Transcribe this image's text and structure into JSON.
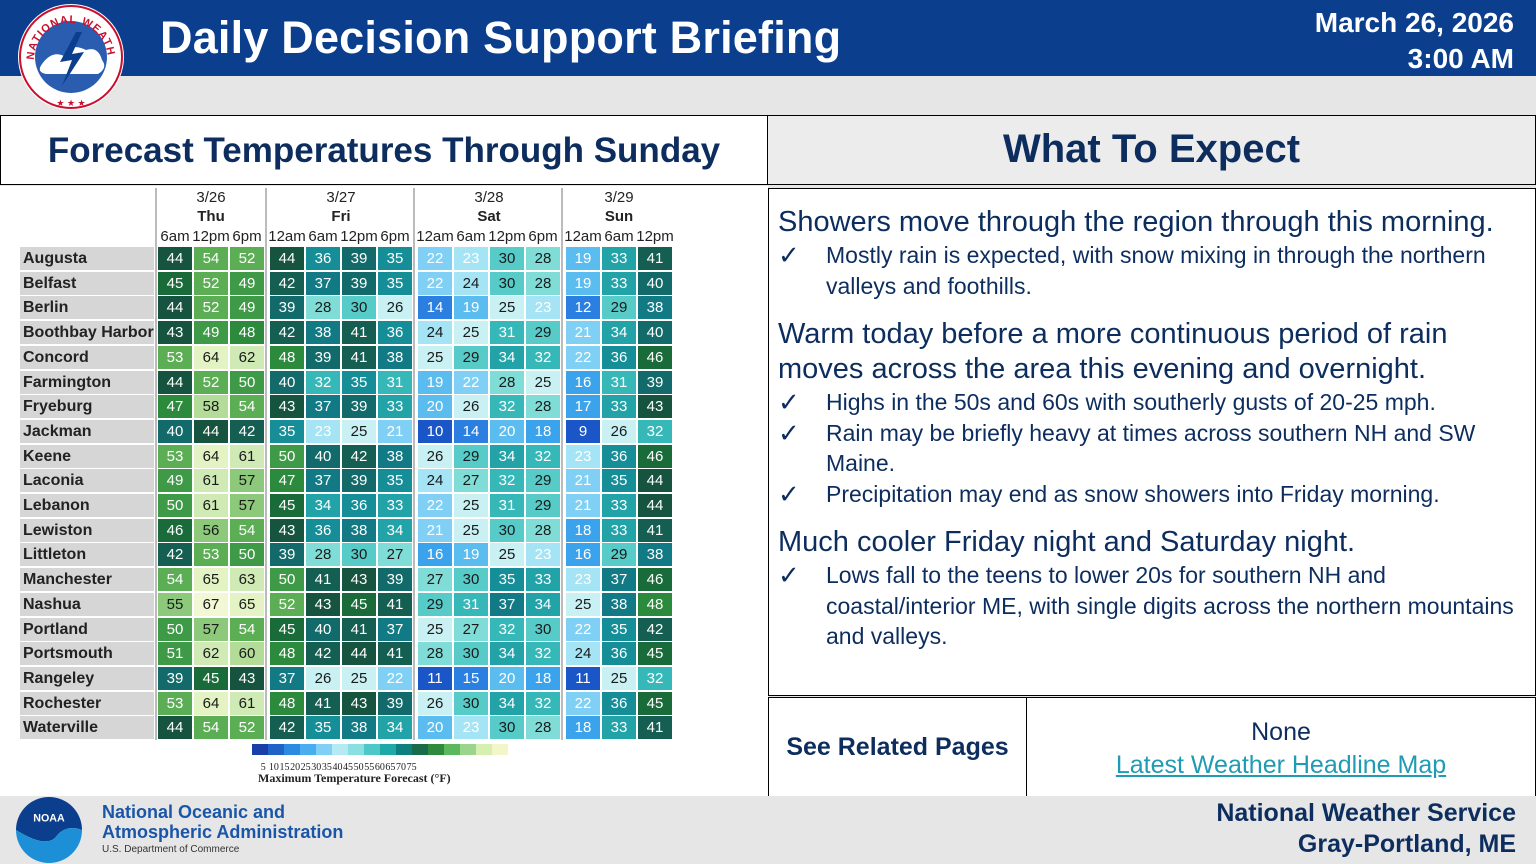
{
  "header": {
    "title": "Daily Decision Support Briefing",
    "date": "March 26, 2026",
    "time": "3:00 AM",
    "logo_text": "NATIONAL WEATHER SERVICE"
  },
  "left": {
    "title": "Forecast Temperatures Through Sunday",
    "days": [
      {
        "date": "3/26",
        "dow": "Thu",
        "times": [
          "6am",
          "12pm",
          "6pm"
        ]
      },
      {
        "date": "3/27",
        "dow": "Fri",
        "times": [
          "12am",
          "6am",
          "12pm",
          "6pm"
        ]
      },
      {
        "date": "3/28",
        "dow": "Sat",
        "times": [
          "12am",
          "6am",
          "12pm",
          "6pm"
        ]
      },
      {
        "date": "3/29",
        "dow": "Sun",
        "times": [
          "12am",
          "6am",
          "12pm"
        ]
      }
    ],
    "rows": [
      {
        "city": "Augusta",
        "temps": [
          44,
          54,
          52,
          44,
          36,
          39,
          35,
          22,
          23,
          30,
          28,
          19,
          33,
          41
        ]
      },
      {
        "city": "Belfast",
        "temps": [
          45,
          52,
          49,
          42,
          37,
          39,
          35,
          22,
          24,
          30,
          28,
          19,
          33,
          40
        ]
      },
      {
        "city": "Berlin",
        "temps": [
          44,
          52,
          49,
          39,
          28,
          30,
          26,
          14,
          19,
          25,
          23,
          12,
          29,
          38
        ]
      },
      {
        "city": "Boothbay Harbor",
        "temps": [
          43,
          49,
          48,
          42,
          38,
          41,
          36,
          24,
          25,
          31,
          29,
          21,
          34,
          40
        ]
      },
      {
        "city": "Concord",
        "temps": [
          53,
          64,
          62,
          48,
          39,
          41,
          38,
          25,
          29,
          34,
          32,
          22,
          36,
          46
        ]
      },
      {
        "city": "Farmington",
        "temps": [
          44,
          52,
          50,
          40,
          32,
          35,
          31,
          19,
          22,
          28,
          25,
          16,
          31,
          39
        ]
      },
      {
        "city": "Fryeburg",
        "temps": [
          47,
          58,
          54,
          43,
          37,
          39,
          33,
          20,
          26,
          32,
          28,
          17,
          33,
          43
        ]
      },
      {
        "city": "Jackman",
        "temps": [
          40,
          44,
          42,
          35,
          23,
          25,
          21,
          10,
          14,
          20,
          18,
          9,
          26,
          32
        ]
      },
      {
        "city": "Keene",
        "temps": [
          53,
          64,
          61,
          50,
          40,
          42,
          38,
          26,
          29,
          34,
          32,
          23,
          36,
          46
        ]
      },
      {
        "city": "Laconia",
        "temps": [
          49,
          61,
          57,
          47,
          37,
          39,
          35,
          24,
          27,
          32,
          29,
          21,
          35,
          44
        ]
      },
      {
        "city": "Lebanon",
        "temps": [
          50,
          61,
          57,
          45,
          34,
          36,
          33,
          22,
          25,
          31,
          29,
          21,
          33,
          44
        ]
      },
      {
        "city": "Lewiston",
        "temps": [
          46,
          56,
          54,
          43,
          36,
          38,
          34,
          21,
          25,
          30,
          28,
          18,
          33,
          41
        ]
      },
      {
        "city": "Littleton",
        "temps": [
          42,
          53,
          50,
          39,
          28,
          30,
          27,
          16,
          19,
          25,
          23,
          16,
          29,
          38
        ]
      },
      {
        "city": "Manchester",
        "temps": [
          54,
          65,
          63,
          50,
          41,
          43,
          39,
          27,
          30,
          35,
          33,
          23,
          37,
          46
        ]
      },
      {
        "city": "Nashua",
        "temps": [
          55,
          67,
          65,
          52,
          43,
          45,
          41,
          29,
          31,
          37,
          34,
          25,
          38,
          48
        ]
      },
      {
        "city": "Portland",
        "temps": [
          50,
          57,
          54,
          45,
          40,
          41,
          37,
          25,
          27,
          32,
          30,
          22,
          35,
          42
        ]
      },
      {
        "city": "Portsmouth",
        "temps": [
          51,
          62,
          60,
          48,
          42,
          44,
          41,
          28,
          30,
          34,
          32,
          24,
          36,
          45
        ]
      },
      {
        "city": "Rangeley",
        "temps": [
          39,
          45,
          43,
          37,
          26,
          25,
          22,
          11,
          15,
          20,
          18,
          11,
          25,
          32
        ]
      },
      {
        "city": "Rochester",
        "temps": [
          53,
          64,
          61,
          48,
          41,
          43,
          39,
          26,
          30,
          34,
          32,
          22,
          36,
          45
        ]
      },
      {
        "city": "Waterville",
        "temps": [
          44,
          54,
          52,
          42,
          35,
          38,
          34,
          20,
          23,
          30,
          28,
          18,
          33,
          41
        ]
      }
    ],
    "legend": {
      "ticks": [
        "5",
        "10",
        "15",
        "20",
        "25",
        "30",
        "35",
        "40",
        "45",
        "50",
        "55",
        "60",
        "65",
        "70",
        "75"
      ],
      "title": "Maximum Temperature Forecast (°F)",
      "colors": [
        "#1a3fa8",
        "#1f63c9",
        "#2c8ae0",
        "#48aef0",
        "#7fd0f4",
        "#b5eaf5",
        "#8ae0e0",
        "#4cc8c8",
        "#1ea8a8",
        "#0d7f7f",
        "#1a6b4a",
        "#2e8b3e",
        "#5cb85c",
        "#9bd48c",
        "#d7efb0",
        "#f3f6c8"
      ]
    }
  },
  "right": {
    "title": "What To Expect",
    "sections": [
      {
        "heading": "Showers move through the region through this morning.",
        "bullets": [
          "Mostly rain is expected, with snow mixing in through the northern valleys and foothills."
        ]
      },
      {
        "heading": "Warm today before a more continuous period of rain moves across the area this evening and overnight.",
        "bullets": [
          "Highs in the 50s and 60s with southerly gusts of 20-25 mph.",
          "Rain may be briefly heavy at times across southern NH and SW Maine.",
          "Precipitation may end as snow showers into Friday morning."
        ]
      },
      {
        "heading": "Much cooler Friday night and Saturday night.",
        "bullets": [
          "Lows fall to the teens to lower 20s for southern NH and coastal/interior ME, with single digits across the northern mountains and valleys."
        ]
      }
    ],
    "check_glyph": "✓",
    "related": {
      "label": "See Related Pages",
      "value": "None",
      "link": "Latest Weather Headline Map"
    }
  },
  "footer": {
    "noaa_line1": "National Oceanic and",
    "noaa_line2": "Atmospheric Administration",
    "noaa_dept": "U.S. Department of Commerce",
    "noaa_logo_text": "NOAA",
    "nws_line1": "National Weather Service",
    "nws_line2": "Gray-Portland, ME"
  }
}
